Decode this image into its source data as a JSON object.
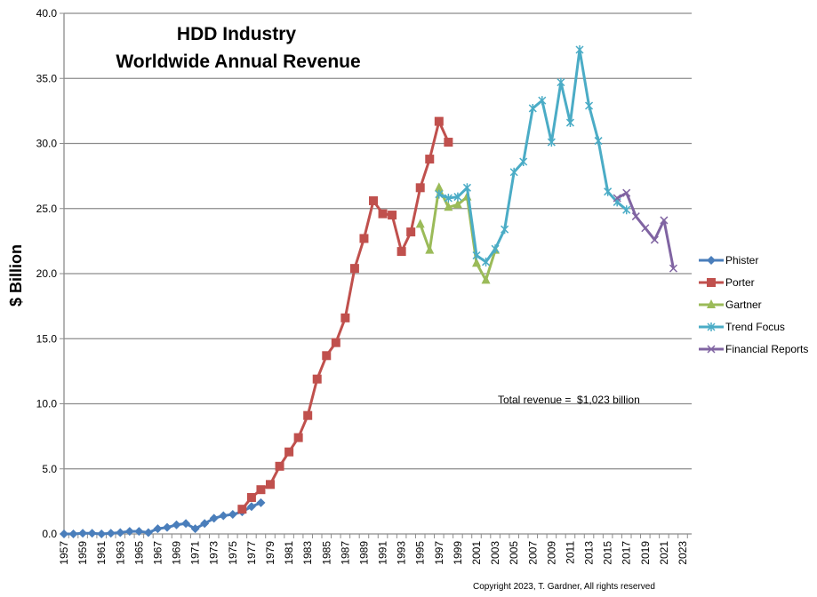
{
  "chart_data": {
    "type": "line",
    "title": [
      "HDD Industry",
      "Worldwide Annual Revenue"
    ],
    "xlabel": "",
    "ylabel": "$ Billion",
    "ylim": [
      0,
      40
    ],
    "yticks": [
      "0.0",
      "5.0",
      "10.0",
      "15.0",
      "20.0",
      "25.0",
      "30.0",
      "35.0",
      "40.0"
    ],
    "xlim": [
      1957,
      2023
    ],
    "xtick_step": 2,
    "grid": "horizontal",
    "legend_position": "right",
    "annotation": "Total revenue =  $1,023 billion",
    "copyright": "Copyright 2023, T. Gardner, All rights reserved",
    "series": [
      {
        "name": "Phister",
        "color": "#4a7ebb",
        "marker": "diamond",
        "start": 1957,
        "values": [
          0,
          0,
          0.05,
          0.05,
          0,
          0.05,
          0.1,
          0.2,
          0.2,
          0.1,
          0.4,
          0.5,
          0.7,
          0.8,
          0.4,
          0.8,
          1.2,
          1.4,
          1.5,
          1.7,
          2.1,
          2.4
        ]
      },
      {
        "name": "Porter",
        "color": "#c0504d",
        "marker": "square",
        "start": 1976,
        "values": [
          1.9,
          2.8,
          3.4,
          3.8,
          5.2,
          6.3,
          7.4,
          9.1,
          11.9,
          13.7,
          14.7,
          16.6,
          20.4,
          22.7,
          25.6,
          24.6,
          24.5,
          21.7,
          23.2,
          26.6,
          28.8,
          31.7,
          30.1
        ]
      },
      {
        "name": "Gartner",
        "color": "#9bbb59",
        "marker": "triangle",
        "start": 1995,
        "values": [
          23.8,
          21.8,
          26.6,
          25.1,
          25.3,
          25.9,
          20.8,
          19.5,
          21.8
        ]
      },
      {
        "name": "Trend Focus",
        "color": "#4bacc6",
        "marker": "star",
        "start": 1997,
        "values": [
          26.1,
          25.8,
          25.9,
          26.6,
          21.4,
          20.9,
          21.9,
          23.4,
          27.8,
          28.6,
          32.7,
          33.3,
          30.1,
          34.7,
          31.6,
          37.2,
          32.9,
          30.2,
          26.3,
          25.5,
          24.9
        ]
      },
      {
        "name": "Financial Reports",
        "color": "#8064a2",
        "marker": "x",
        "start": 2016,
        "values": [
          25.8,
          26.2,
          24.4,
          23.5,
          22.6,
          24.1,
          20.4
        ]
      }
    ]
  }
}
